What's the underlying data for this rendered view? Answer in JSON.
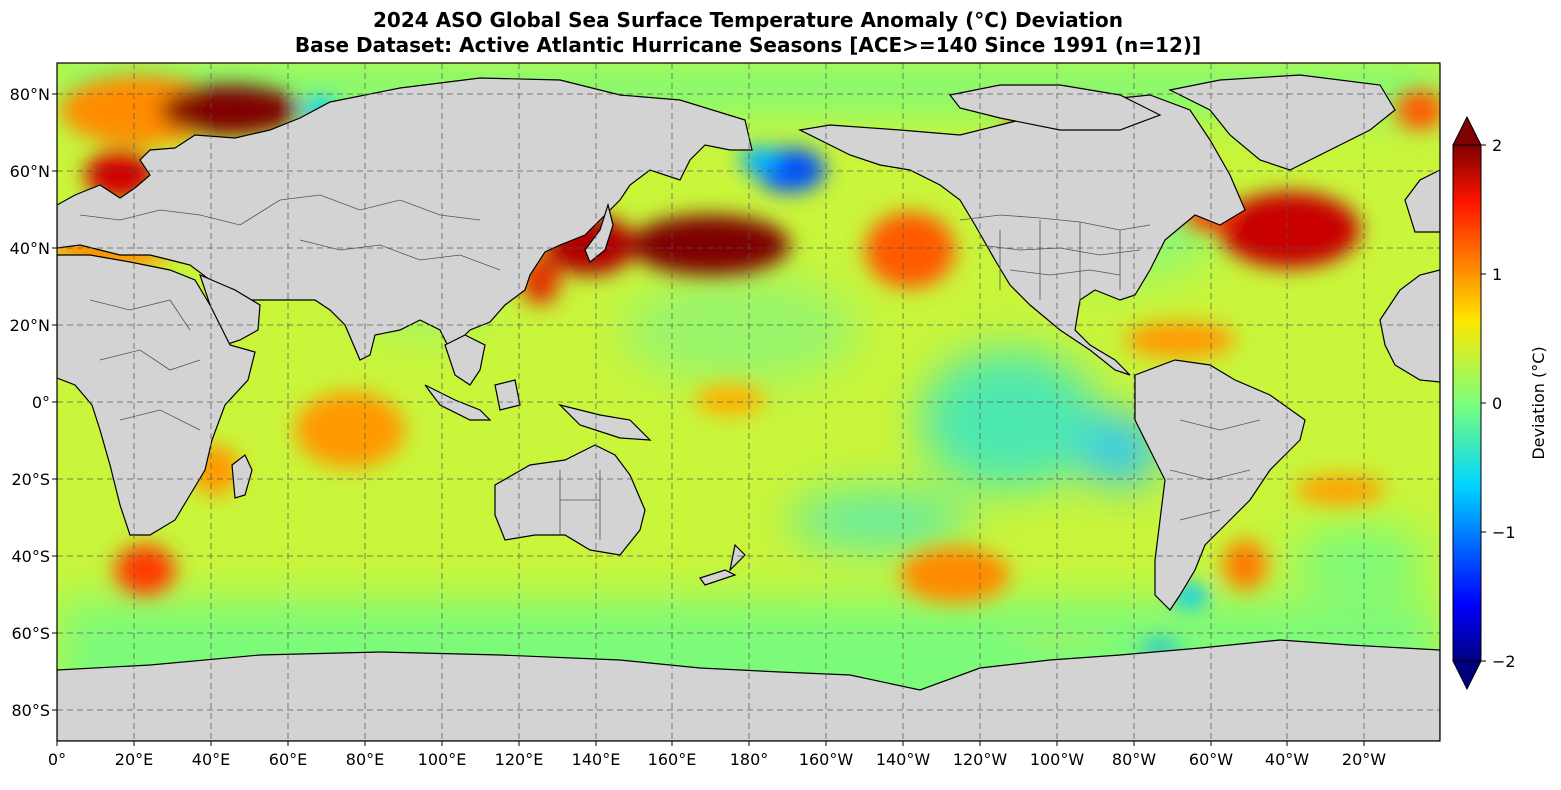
{
  "title": {
    "line1": "2024 ASO Global Sea Surface Temperature Anomaly (°C) Deviation",
    "line2": "Base Dataset: Active Atlantic Hurricane Seasons [ACE>=140 Since 1991 (n=12)]"
  },
  "map": {
    "projection": "equirectangular, centered on 180°",
    "lon_range": [
      0,
      360
    ],
    "lat_range": [
      -88,
      88
    ],
    "grid": true,
    "grid_style": "dashed",
    "land_color": "#d3d3d3",
    "lon_ticks": [
      "0°",
      "20°E",
      "40°E",
      "60°E",
      "80°E",
      "100°E",
      "120°E",
      "140°E",
      "160°E",
      "180°",
      "160°W",
      "140°W",
      "120°W",
      "100°W",
      "80°W",
      "60°W",
      "40°W",
      "20°W"
    ],
    "lat_ticks": [
      "80°N",
      "60°N",
      "40°N",
      "20°N",
      "0°",
      "20°S",
      "40°S",
      "60°S",
      "80°S"
    ],
    "anomalies": [
      {
        "region": "North Pacific (Kuroshio extension)",
        "lon": 170,
        "lat": 40,
        "value": 2.0
      },
      {
        "region": "Sea of Japan / East China Sea",
        "lon": 132,
        "lat": 38,
        "value": 1.8
      },
      {
        "region": "Northeast Pacific",
        "lon": 222,
        "lat": 40,
        "value": 1.6
      },
      {
        "region": "North Atlantic (Gulf Stream)",
        "lon": 310,
        "lat": 45,
        "value": 1.8
      },
      {
        "region": "Gulf of Maine",
        "lon": 293,
        "lat": 43,
        "value": 1.4
      },
      {
        "region": "Barents Sea",
        "lon": 42,
        "lat": 76,
        "value": 2.0
      },
      {
        "region": "Baltic Sea",
        "lon": 20,
        "lat": 60,
        "value": 1.8
      },
      {
        "region": "Black Sea",
        "lon": 35,
        "lat": 43,
        "value": 1.8
      },
      {
        "region": "Mediterranean Sea",
        "lon": 18,
        "lat": 37,
        "value": 1.3
      },
      {
        "region": "Caribbean Sea",
        "lon": 283,
        "lat": 16,
        "value": 1.2
      },
      {
        "region": "Canadian Arctic Archipelago",
        "lon": 268,
        "lat": 74,
        "value": 1.8
      },
      {
        "region": "Bering Sea",
        "lon": 186,
        "lat": 59,
        "value": -1.3
      },
      {
        "region": "Central Indian Ocean",
        "lon": 80,
        "lat": -10,
        "value": 1.2
      },
      {
        "region": "Mozambique Channel",
        "lon": 40,
        "lat": -20,
        "value": 1.2
      },
      {
        "region": "South Indian Ocean",
        "lon": 25,
        "lat": -43,
        "value": 1.6
      },
      {
        "region": "Southeast Pacific",
        "lon": 235,
        "lat": -44,
        "value": 1.3
      },
      {
        "region": "South Atlantic",
        "lon": 310,
        "lat": -41,
        "value": 1.3
      },
      {
        "region": "South Atlantic (east)",
        "lon": 340,
        "lat": -23,
        "value": 1.1
      },
      {
        "region": "Equatorial Pacific (eastern)",
        "lon": 275,
        "lat": -12,
        "value": -0.5
      }
    ]
  },
  "colorbar": {
    "label": "Deviation (°C)",
    "min": -2,
    "max": 2,
    "ticks": [
      "2",
      "1",
      "0",
      "−1",
      "−2"
    ],
    "extend": "both",
    "colormap": "jet"
  }
}
